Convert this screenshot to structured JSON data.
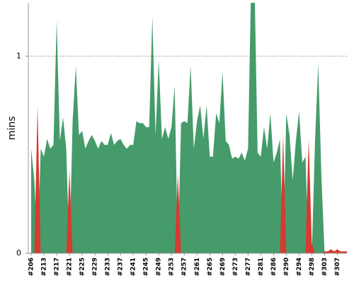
{
  "chart_data": {
    "type": "area",
    "y_label": "mins",
    "categories": [
      "#206",
      null,
      null,
      null,
      "#213",
      null,
      null,
      null,
      "#217",
      null,
      null,
      null,
      "#221",
      null,
      null,
      null,
      "#225",
      null,
      null,
      null,
      "#229",
      null,
      null,
      null,
      "#233",
      null,
      null,
      null,
      "#237",
      null,
      null,
      null,
      "#241",
      null,
      null,
      null,
      "#245",
      null,
      null,
      null,
      "#249",
      null,
      null,
      null,
      "#253",
      null,
      null,
      null,
      "#257",
      null,
      null,
      null,
      "#261",
      null,
      null,
      null,
      "#265",
      null,
      null,
      null,
      "#269",
      null,
      null,
      null,
      "#273",
      null,
      null,
      null,
      "#277",
      null,
      null,
      null,
      "#281",
      null,
      null,
      null,
      "#286",
      null,
      null,
      null,
      "#290",
      null,
      null,
      null,
      "#294",
      null,
      null,
      null,
      "#298",
      null,
      null,
      null,
      "#303",
      null,
      null,
      null,
      "#307",
      null,
      null,
      null
    ],
    "series": [
      {
        "color": "#469b6b",
        "values": [
          0.53,
          0.37,
          0,
          0.53,
          0.49,
          0.58,
          0.53,
          0.55,
          1.18,
          0.57,
          0.69,
          0.53,
          0,
          0.67,
          0.95,
          0.6,
          0.62,
          0.53,
          0.57,
          0.6,
          0.57,
          0.53,
          0.57,
          0.55,
          0.55,
          0.61,
          0.55,
          0.57,
          0.58,
          0.55,
          0.53,
          0.55,
          0.55,
          0.67,
          0.66,
          0.66,
          0.64,
          0.64,
          1.2,
          0.6,
          0.98,
          0.58,
          0.64,
          0.58,
          0.64,
          0.85,
          0,
          0.66,
          0.67,
          0.66,
          0.95,
          0.53,
          0.67,
          0.75,
          0.58,
          0.75,
          0.49,
          0.49,
          0.71,
          0.66,
          0.92,
          0.57,
          0.55,
          0.48,
          0.49,
          0.48,
          0.51,
          0.47,
          0.53,
          1.4,
          1.4,
          0.51,
          0.49,
          0.64,
          0.53,
          0.71,
          0.46,
          0.51,
          0.58,
          0,
          0.71,
          0.6,
          0.37,
          0.57,
          0.72,
          0.46,
          0.49,
          0,
          0,
          0.57,
          0.96,
          0.39,
          0,
          0,
          0,
          0,
          0,
          0,
          0,
          0
        ]
      },
      {
        "color": "#d73a31",
        "values": [
          0,
          0,
          0.75,
          0,
          0,
          0,
          0,
          0,
          0,
          0,
          0,
          0,
          0.42,
          0,
          0,
          0,
          0,
          0,
          0,
          0,
          0,
          0,
          0,
          0,
          0,
          0,
          0,
          0,
          0,
          0,
          0,
          0,
          0,
          0,
          0,
          0,
          0,
          0,
          0,
          0,
          0,
          0,
          0,
          0,
          0,
          0,
          0.4,
          0,
          0,
          0,
          0,
          0,
          0,
          0,
          0,
          0,
          0,
          0,
          0,
          0,
          0,
          0,
          0,
          0,
          0,
          0,
          0,
          0,
          0,
          0,
          0,
          0,
          0,
          0,
          0,
          0,
          0,
          0,
          0,
          0.6,
          0,
          0,
          0,
          0,
          0,
          0,
          0,
          0.58,
          0.05,
          0,
          0,
          0,
          0.01,
          0.01,
          0.02,
          0.01,
          0.02,
          0.01,
          0.01,
          0.01
        ]
      }
    ],
    "ylim": [
      0,
      1.27
    ],
    "yticks": [
      0,
      1
    ],
    "grid": true
  }
}
